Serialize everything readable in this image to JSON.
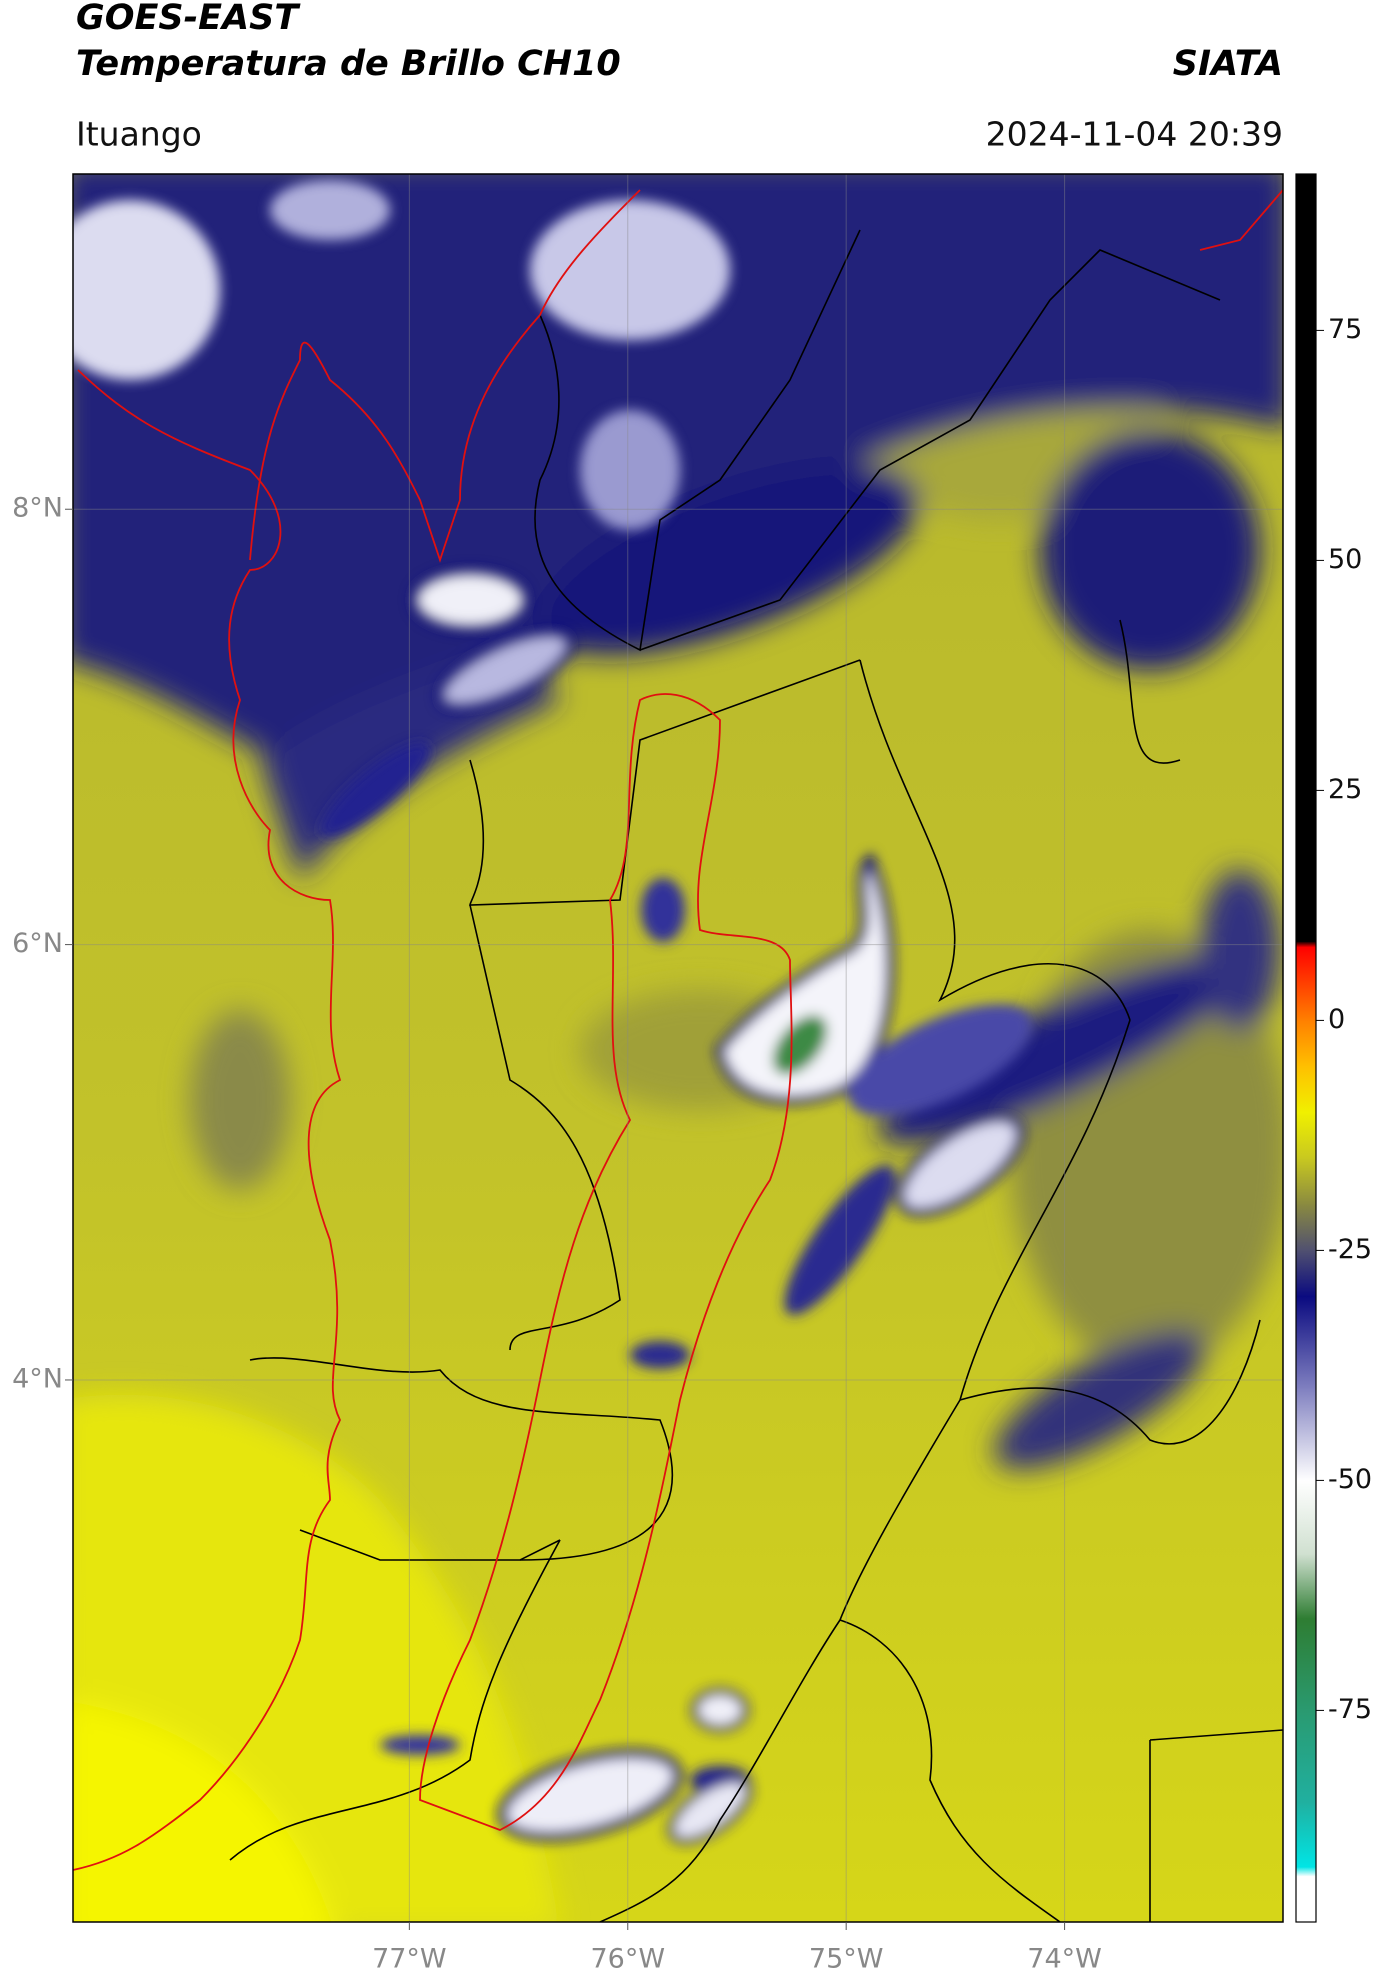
{
  "chart_data": {
    "type": "map",
    "title": "GOES-EAST",
    "subtitle": "Temperatura de Brillo CH10",
    "source": "SIATA",
    "region": "Ituango",
    "timestamp": "2024-11-04 20:39",
    "xlim": [
      -78.54,
      -73.0
    ],
    "ylim": [
      1.51,
      9.54
    ],
    "xticks": [
      {
        "value": -77,
        "label": "77°W"
      },
      {
        "value": -76,
        "label": "76°W"
      },
      {
        "value": -75,
        "label": "75°W"
      },
      {
        "value": -74,
        "label": "74°W"
      }
    ],
    "yticks": [
      {
        "value": 8,
        "label": "8°N"
      },
      {
        "value": 6,
        "label": "6°N"
      },
      {
        "value": 4,
        "label": "4°N"
      }
    ],
    "grid": true,
    "colorbar": {
      "lim": [
        -98,
        92
      ],
      "ticks": [
        75,
        50,
        25,
        0,
        -25,
        -50,
        -75
      ],
      "stops": [
        {
          "value": -98,
          "color": "#ffffff"
        },
        {
          "value": -93,
          "color": "#ffffff"
        },
        {
          "value": -92,
          "color": "#00e5e5"
        },
        {
          "value": -85,
          "color": "#20b0a0"
        },
        {
          "value": -75,
          "color": "#2a9a70"
        },
        {
          "value": -65,
          "color": "#2e7d32"
        },
        {
          "value": -58,
          "color": "#d0e0d0"
        },
        {
          "value": -50,
          "color": "#ffffff"
        },
        {
          "value": -40,
          "color": "#8080c0"
        },
        {
          "value": -30,
          "color": "#0a0a80"
        },
        {
          "value": -25,
          "color": "#505070"
        },
        {
          "value": -20,
          "color": "#8a8a40"
        },
        {
          "value": -15,
          "color": "#c8c820"
        },
        {
          "value": -10,
          "color": "#f0f000"
        },
        {
          "value": -5,
          "color": "#ffc000"
        },
        {
          "value": 0,
          "color": "#ff8000"
        },
        {
          "value": 8,
          "color": "#ff0000"
        },
        {
          "value": 8.6,
          "color": "#000000"
        },
        {
          "value": 92,
          "color": "#000000"
        }
      ]
    }
  }
}
